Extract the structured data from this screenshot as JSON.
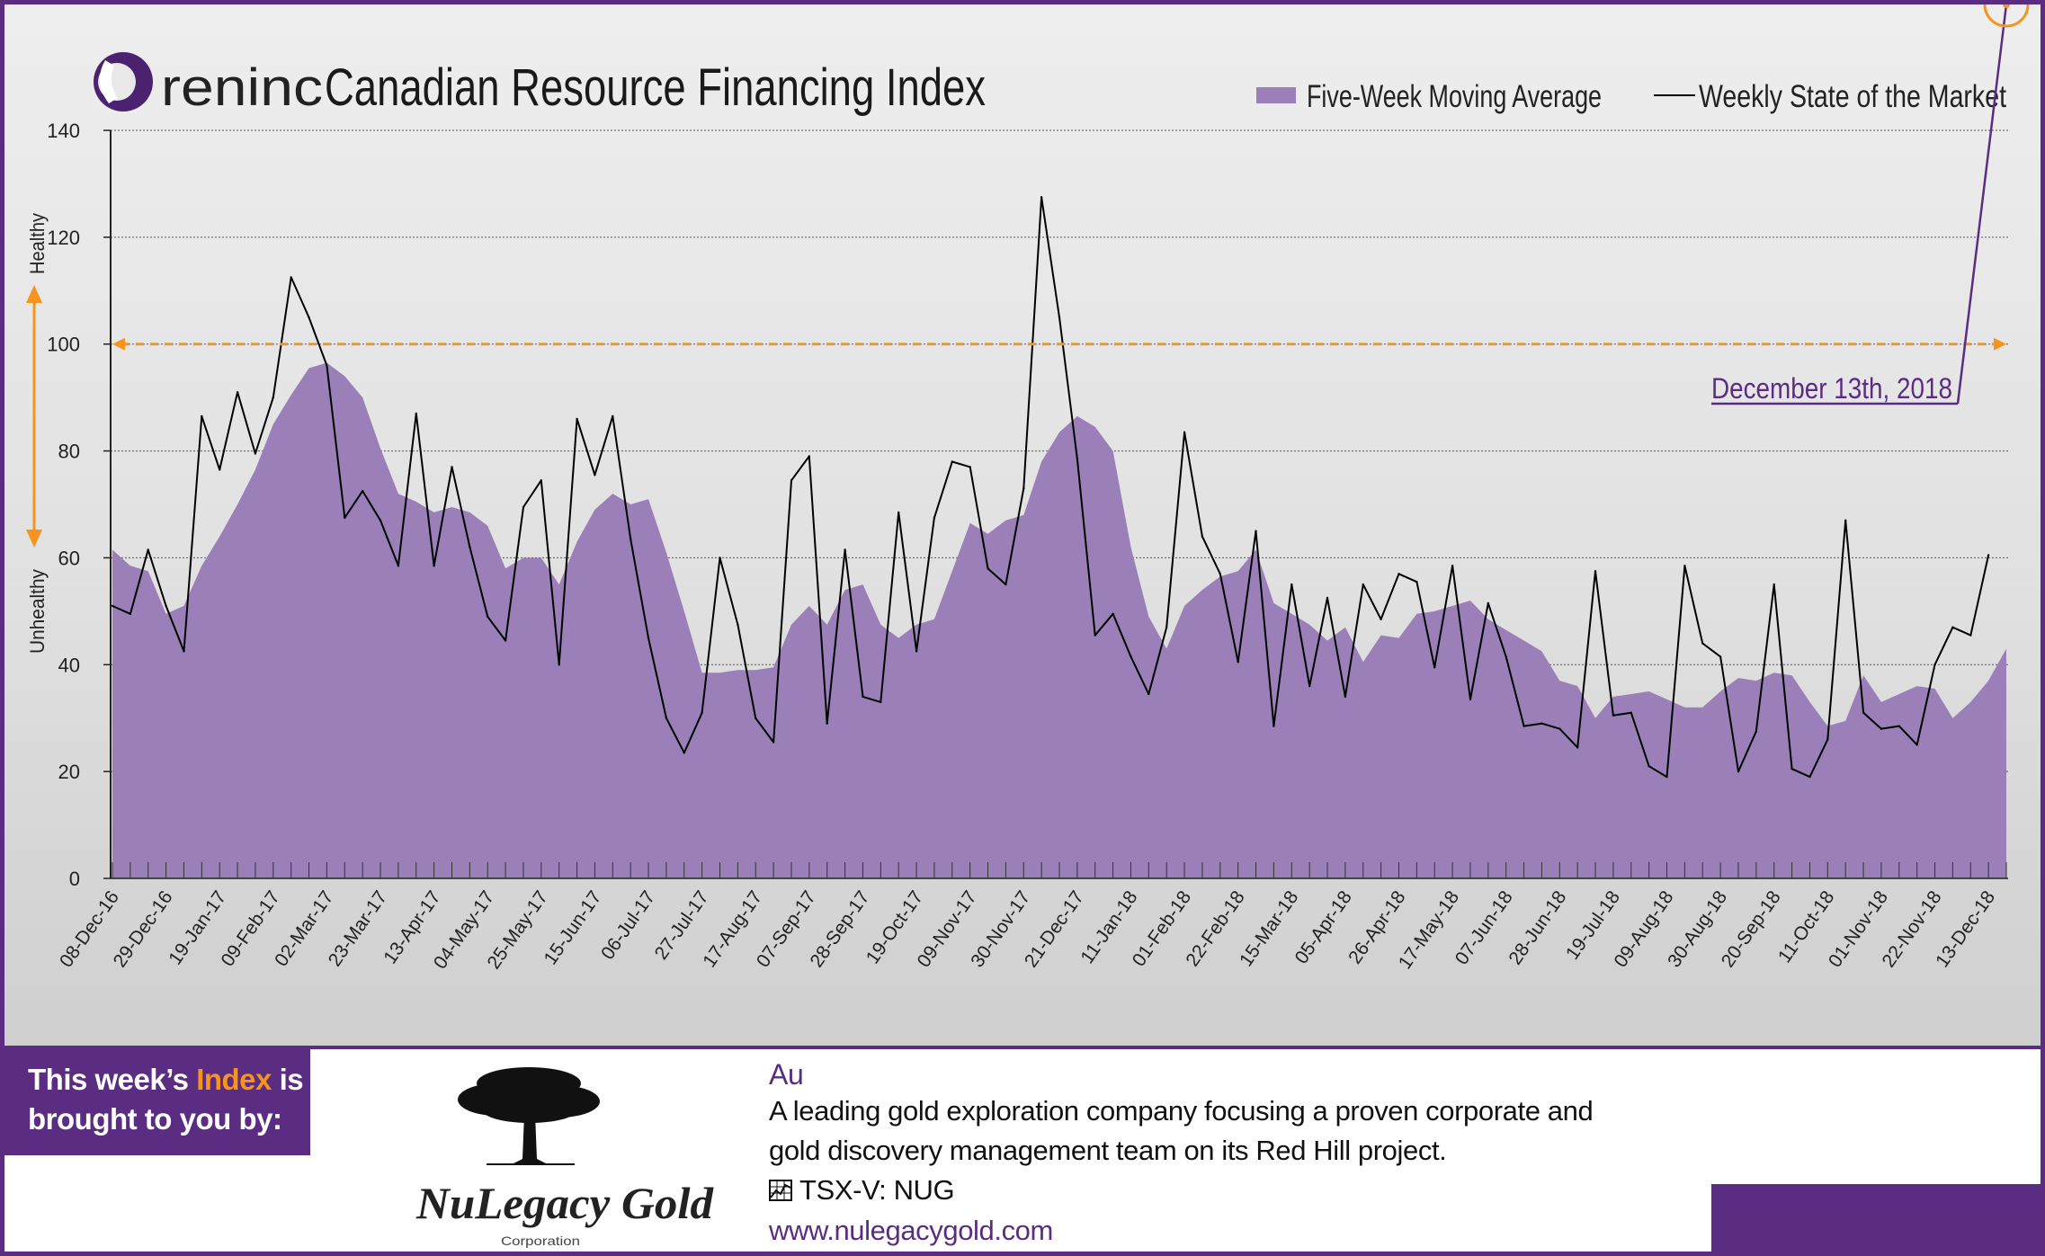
{
  "header": {
    "brand_word": "reninc",
    "title": "Canadian Resource Financing Index"
  },
  "legend": {
    "area_label": "Five-Week Moving Average",
    "line_label": "Weekly State of the Market"
  },
  "annotation": {
    "date_label": "December 13th, 2018",
    "healthy_label": "Healthy",
    "unhealthy_label": "Unhealthy"
  },
  "colors": {
    "brand_purple": "#5a2d82",
    "area_fill": "#9a7fb8",
    "accent_orange": "#f7941d",
    "line": "#000000"
  },
  "chart_data": {
    "type": "area",
    "title": "Canadian Resource Financing Index",
    "xlabel": "",
    "ylabel": "",
    "ylim": [
      0,
      140
    ],
    "yticks": [
      0,
      20,
      40,
      60,
      80,
      100,
      120,
      140
    ],
    "reference_line": 100,
    "grid": true,
    "legend_position": "top-right",
    "x_tick_labels": [
      "08-Dec-16",
      "29-Dec-16",
      "19-Jan-17",
      "09-Feb-17",
      "02-Mar-17",
      "23-Mar-17",
      "13-Apr-17",
      "04-May-17",
      "25-May-17",
      "15-Jun-17",
      "06-Jul-17",
      "27-Jul-17",
      "17-Aug-17",
      "07-Sep-17",
      "28-Sep-17",
      "19-Oct-17",
      "09-Nov-17",
      "30-Nov-17",
      "21-Dec-17",
      "11-Jan-18",
      "01-Feb-18",
      "22-Feb-18",
      "15-Mar-18",
      "05-Apr-18",
      "26-Apr-18",
      "17-May-18",
      "07-Jun-18",
      "28-Jun-18",
      "19-Jul-18",
      "09-Aug-18",
      "30-Aug-18",
      "20-Sep-18",
      "11-Oct-18",
      "01-Nov-18",
      "22-Nov-18",
      "13-Dec-18"
    ],
    "series": [
      {
        "name": "Five-Week Moving Average",
        "type": "area",
        "values": [
          61.5,
          58.5,
          57.5,
          49.5,
          51,
          58.5,
          64,
          70,
          76.5,
          85,
          90.5,
          95.5,
          96.5,
          94,
          90,
          80.5,
          72,
          70.5,
          68.5,
          69.5,
          68.5,
          66,
          58,
          60,
          60,
          55,
          63,
          69,
          72,
          70,
          71,
          61,
          50,
          38.5,
          38.5,
          39,
          39,
          39.5,
          47.5,
          51,
          47.5,
          54,
          55,
          47.5,
          45,
          47.5,
          48.5,
          57.5,
          66.5,
          64.5,
          67,
          68,
          78,
          83.5,
          86.5,
          84.5,
          80,
          62,
          49,
          43,
          51,
          54,
          56.5,
          57.5,
          61.5,
          51.5,
          49.5,
          47.5,
          44.5,
          47,
          40.5,
          45.5,
          45,
          49.5,
          50,
          51,
          52,
          48.5,
          46.5,
          44.5,
          42.5,
          37,
          36,
          30,
          34,
          34.5,
          35,
          33.5,
          32,
          32,
          35,
          37.5,
          37,
          38.5,
          38,
          33,
          28.5,
          29.5,
          38,
          33,
          34.5,
          36,
          35.5,
          30,
          33,
          37,
          43
        ]
      },
      {
        "name": "Weekly State of the Market",
        "type": "line",
        "values": [
          51,
          49.5,
          61.5,
          51,
          42.5,
          86.5,
          76.5,
          91,
          79.5,
          90,
          112.5,
          105,
          96,
          67.5,
          72.5,
          67,
          58.5,
          87,
          58.5,
          77,
          62,
          49,
          44.5,
          69.5,
          74.5,
          40,
          86,
          75.5,
          86.5,
          63.5,
          45,
          30,
          23.5,
          31,
          60,
          47.5,
          30,
          25.5,
          74.5,
          79,
          29,
          61.5,
          34,
          33,
          68.5,
          42.5,
          67.5,
          78,
          77,
          58,
          55,
          73,
          127.5,
          105,
          78.5,
          45.5,
          49.5,
          41.5,
          34.5,
          47,
          83.5,
          64,
          57,
          40.5,
          65,
          28.5,
          55,
          36,
          52.5,
          34,
          55,
          48.5,
          57,
          55.5,
          39.5,
          58.5,
          33.5,
          51.5,
          41.5,
          28.5,
          29,
          28,
          24.5,
          57.5,
          30.5,
          31,
          21,
          19,
          58.5,
          44,
          41.5,
          20,
          27.5,
          55,
          20.5,
          19,
          26,
          67,
          31,
          28,
          28.5,
          25,
          40,
          47,
          45.5,
          60.5
        ]
      }
    ]
  },
  "sponsor": {
    "intro_part1": "This week’s",
    "intro_highlight": "Index",
    "intro_part2": "is",
    "intro_line2": "brought to you by:",
    "logo_name": "NuLegacy Gold",
    "logo_subtitle": "Corporation",
    "symbol": "Au",
    "desc_line1": "A leading gold exploration company focusing a proven corporate and",
    "desc_line2": "gold discovery management team on its Red Hill project.",
    "ticker": "TSX-V:  NUG",
    "url": "www.nulegacygold.com"
  }
}
